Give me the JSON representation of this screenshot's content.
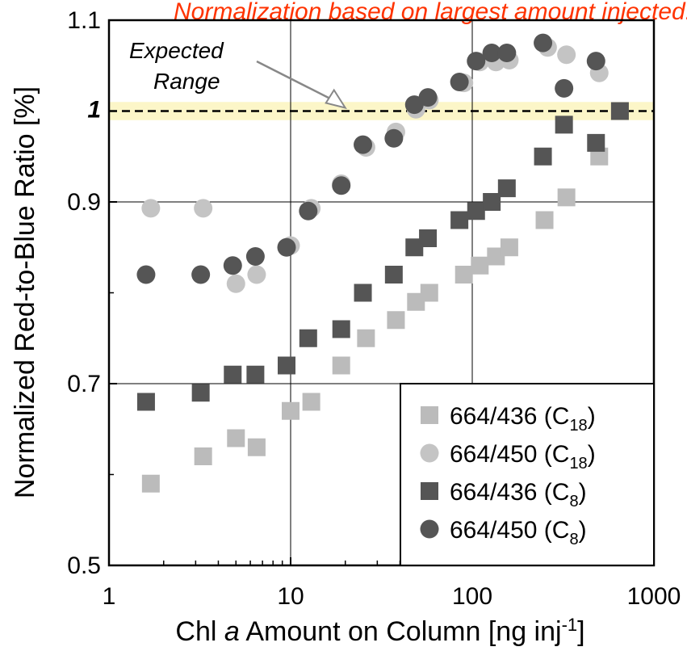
{
  "note": "Normalization based on largest amount injected.",
  "chart_data": {
    "type": "scatter",
    "xscale": "log",
    "xlim": [
      1,
      1000
    ],
    "ylim": [
      0.5,
      1.1
    ],
    "xticks": [
      1,
      10,
      100,
      1000
    ],
    "xtick_labels": [
      "1",
      "10",
      "100",
      "1000"
    ],
    "yticks": [
      0.5,
      0.7,
      0.9,
      1,
      1.1
    ],
    "ytick_labels": [
      "0.5",
      "0.7",
      "0.9",
      "1",
      "1.1"
    ],
    "xlabel": {
      "pre": "Chl ",
      "italic": "a",
      "post": " Amount on Column [ng inj",
      "sup": "-1",
      "end": "]"
    },
    "ylabel": "Normalized Red-to-Blue Ratio [%]",
    "grid": true,
    "reference_line": {
      "y": 1.0,
      "style": "dashed",
      "band": [
        0.99,
        1.01
      ],
      "band_color": "#fcf6c8"
    },
    "annotation": {
      "line1": "Expected",
      "line2": "Range",
      "points_to": [
        20,
        1.0
      ]
    },
    "legend_position": "bottom-right",
    "series": [
      {
        "name": "664/436 (C18)",
        "label_main": "664/436 (C",
        "label_sub": "18",
        "label_end": ")",
        "marker": "square",
        "color": "#bbbbbb",
        "x": [
          1.7,
          3.3,
          5.0,
          6.5,
          10,
          13,
          19,
          26,
          38,
          49,
          58,
          90,
          110,
          135,
          160,
          250,
          330,
          500,
          650
        ],
        "y": [
          0.59,
          0.62,
          0.64,
          0.63,
          0.67,
          0.68,
          0.72,
          0.75,
          0.77,
          0.79,
          0.8,
          0.82,
          0.83,
          0.84,
          0.85,
          0.88,
          0.905,
          0.95,
          1.0
        ]
      },
      {
        "name": "664/450 (C18)",
        "label_main": "664/450 (C",
        "label_sub": "18",
        "label_end": ")",
        "marker": "circle",
        "color": "#c4c4c4",
        "x": [
          1.7,
          3.3,
          5.0,
          6.5,
          10,
          13,
          19,
          26,
          38,
          49,
          58,
          90,
          110,
          135,
          160,
          260,
          330,
          500
        ],
        "y": [
          0.893,
          0.893,
          0.81,
          0.82,
          0.852,
          0.893,
          0.92,
          0.96,
          0.977,
          1.002,
          1.012,
          1.031,
          1.054,
          1.054,
          1.056,
          1.07,
          1.062,
          1.042
        ]
      },
      {
        "name": "664/436 (C8)",
        "label_main": "664/436 (C",
        "label_sub": "8",
        "label_end": ")",
        "marker": "square",
        "color": "#555555",
        "x": [
          1.6,
          3.2,
          4.8,
          6.4,
          9.5,
          12.5,
          19,
          25,
          37,
          48,
          57,
          85,
          105,
          128,
          155,
          245,
          320,
          480,
          650
        ],
        "y": [
          0.68,
          0.69,
          0.71,
          0.71,
          0.72,
          0.75,
          0.76,
          0.8,
          0.82,
          0.85,
          0.86,
          0.88,
          0.89,
          0.9,
          0.915,
          0.95,
          0.985,
          0.965,
          1.0
        ]
      },
      {
        "name": "664/450 (C8)",
        "label_main": "664/450 (C",
        "label_sub": "8",
        "label_end": ")",
        "marker": "circle",
        "color": "#555555",
        "x": [
          1.6,
          3.2,
          4.8,
          6.4,
          9.5,
          12.5,
          19,
          25,
          37,
          48,
          57,
          85,
          105,
          128,
          155,
          245,
          320,
          480
        ],
        "y": [
          0.82,
          0.82,
          0.83,
          0.84,
          0.85,
          0.89,
          0.918,
          0.963,
          0.97,
          1.007,
          1.015,
          1.032,
          1.055,
          1.064,
          1.064,
          1.075,
          1.025,
          1.055
        ]
      }
    ]
  }
}
